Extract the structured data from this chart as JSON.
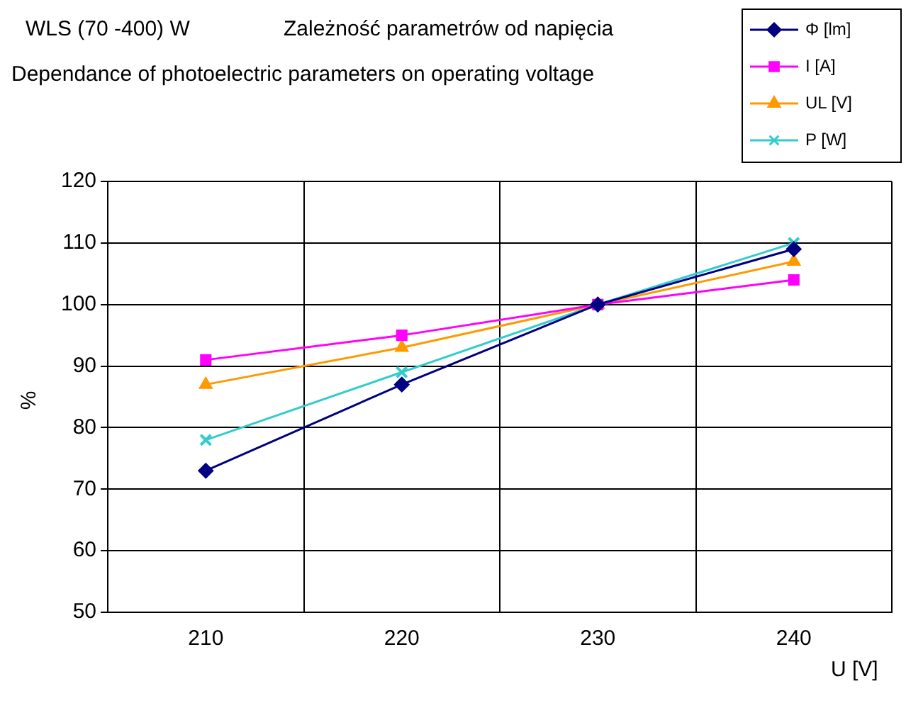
{
  "chart_data": {
    "type": "line",
    "title": "WLS (70 -400) W",
    "subtitle": "Zależność parametrów od napięcia",
    "annotations": [
      "Dependance of photoelectric parameters on operating voltage"
    ],
    "xlabel": "U [V]",
    "ylabel": "%",
    "categories": [
      "210",
      "220",
      "230",
      "240"
    ],
    "series": [
      {
        "name": "Φ [lm]",
        "color": "#000080",
        "marker": "diamond",
        "values": [
          73,
          87,
          100,
          109
        ]
      },
      {
        "name": "I [A]",
        "color": "#ff00ff",
        "marker": "square",
        "values": [
          91,
          95,
          100,
          104
        ]
      },
      {
        "name": "UL [V]",
        "color": "#ff9900",
        "marker": "triangle",
        "values": [
          87,
          93,
          100,
          107
        ]
      },
      {
        "name": "P [W]",
        "color": "#33cccc",
        "marker": "cross",
        "values": [
          78,
          89,
          100,
          110
        ]
      }
    ],
    "ylim": [
      50,
      120
    ],
    "yticks": [
      50,
      60,
      70,
      80,
      90,
      100,
      110,
      120
    ],
    "grid": true,
    "legend": "top right",
    "line_style": "solid"
  }
}
